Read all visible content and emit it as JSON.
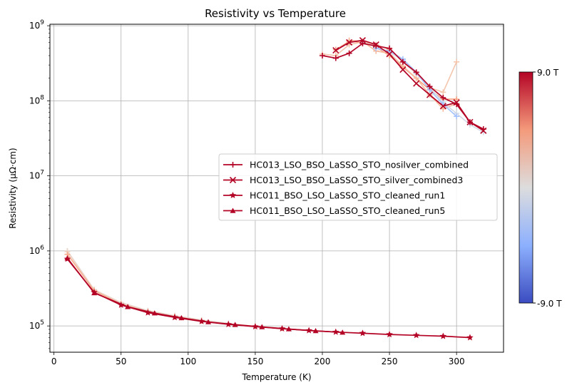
{
  "chart_data": {
    "type": "line",
    "title": "Resistivity vs Temperature",
    "xlabel": "Temperature (K)",
    "ylabel": "Resistivity (μΩ·cm)",
    "xlim": [
      -3,
      335
    ],
    "ylim_log10": [
      4.65,
      9.02
    ],
    "y_scale": "log",
    "x_ticks": [
      0,
      50,
      100,
      150,
      200,
      250,
      300
    ],
    "y_ticks": [
      {
        "exp": 5,
        "label": "10^5"
      },
      {
        "exp": 6,
        "label": "10^6"
      },
      {
        "exp": 7,
        "label": "10^7"
      },
      {
        "exp": 8,
        "label": "10^8"
      },
      {
        "exp": 9,
        "label": "10^9"
      }
    ],
    "grid": true,
    "legend_position": "center-right",
    "colorbar": {
      "top_label": "9.0 T",
      "bottom_label": "-9.0 T",
      "colormap": "coolwarm"
    },
    "line_color": "#b40426",
    "series": [
      {
        "name": "HC013_LSO_BSO_LaSSO_STO_nosilver_combined",
        "marker": "plus",
        "x": [
          200,
          210,
          220,
          230,
          240,
          250,
          260,
          270,
          280,
          290,
          300,
          310,
          320
        ],
        "y": [
          400000000,
          370000000,
          430000000,
          580000000,
          540000000,
          500000000,
          330000000,
          240000000,
          155000000,
          110000000,
          90000000,
          52000000,
          42000000
        ]
      },
      {
        "name": "HC013_LSO_BSO_LaSSO_STO_silver_combined3",
        "marker": "x",
        "x": [
          210,
          220,
          230,
          240,
          250,
          260,
          270,
          280,
          290,
          300,
          310,
          320
        ],
        "y": [
          470000000,
          600000000,
          640000000,
          560000000,
          420000000,
          260000000,
          170000000,
          120000000,
          85000000,
          95000000,
          52000000,
          40000000
        ]
      },
      {
        "name": "HC011_BSO_LSO_LaSSO_STO_cleaned_run1",
        "marker": "star",
        "x": [
          10,
          30,
          50,
          70,
          90,
          110,
          130,
          150,
          170,
          190,
          210,
          230,
          250,
          270,
          290,
          310
        ],
        "y": [
          780000,
          280000,
          190000,
          150000,
          130000,
          115000,
          105000,
          98000,
          92000,
          87000,
          83000,
          80000,
          77000,
          75000,
          73000,
          70000
        ]
      },
      {
        "name": "HC011_BSO_LSO_LaSSO_STO_cleaned_run5",
        "marker": "triangle",
        "x": [
          10,
          30,
          55,
          75,
          95,
          115,
          135,
          155,
          175,
          195,
          215
        ],
        "y": [
          800000,
          275000,
          180000,
          148000,
          128000,
          113000,
          104000,
          97000,
          91000,
          86000,
          82000
        ]
      }
    ],
    "faded_series": [
      {
        "color": "#f4c6ad",
        "x": [
          200,
          210,
          220,
          230,
          240,
          250,
          260,
          270,
          280,
          290,
          300
        ],
        "y": [
          420000000,
          400000000,
          560000000,
          610000000,
          560000000,
          480000000,
          330000000,
          230000000,
          150000000,
          130000000,
          330000000
        ]
      },
      {
        "color": "#f6a283",
        "x": [
          210,
          220,
          230,
          240,
          250,
          260,
          270,
          280,
          290,
          300
        ],
        "y": [
          480000000,
          620000000,
          600000000,
          520000000,
          400000000,
          280000000,
          200000000,
          140000000,
          105000000,
          105000000
        ]
      },
      {
        "color": "#f7b89c",
        "x": [
          220,
          230,
          240,
          250,
          260,
          270,
          280,
          290,
          300
        ],
        "y": [
          640000000,
          620000000,
          460000000,
          430000000,
          290000000,
          200000000,
          120000000,
          78000000,
          92000000
        ]
      },
      {
        "color": "#d3dbe7",
        "x": [
          230,
          240,
          250,
          260,
          270,
          280,
          290,
          300,
          310,
          320
        ],
        "y": [
          600000000,
          520000000,
          440000000,
          350000000,
          230000000,
          150000000,
          95000000,
          68000000,
          48000000,
          38000000
        ]
      },
      {
        "color": "#a5c3fe",
        "x": [
          240,
          250,
          260,
          270,
          280,
          290,
          300
        ],
        "y": [
          500000000,
          460000000,
          360000000,
          240000000,
          140000000,
          90000000,
          62000000
        ]
      },
      {
        "color": "#f2cbb7",
        "x": [
          10,
          30,
          50,
          70,
          90,
          110,
          130,
          150,
          170
        ],
        "y": [
          980000,
          300000,
          200000,
          158000,
          135000,
          118000,
          107000,
          99000,
          93000
        ]
      },
      {
        "color": "#e8d6cc",
        "x": [
          10,
          30,
          50,
          70,
          90,
          110,
          130
        ],
        "y": [
          1000000,
          305000,
          205000,
          160000,
          137000,
          120000,
          108000
        ]
      },
      {
        "color": "#f7ac8e",
        "x": [
          10,
          30,
          50,
          70,
          90,
          110
        ],
        "y": [
          900000,
          295000,
          195000,
          155000,
          133000,
          117000
        ]
      }
    ]
  }
}
